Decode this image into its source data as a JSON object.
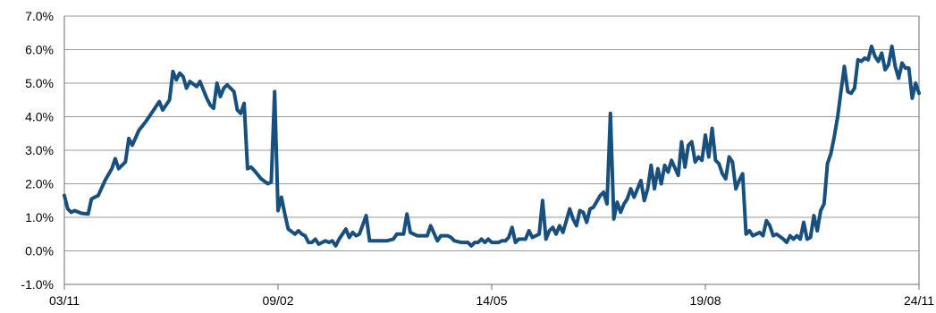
{
  "chart_data": {
    "type": "line",
    "title": "",
    "xlabel": "",
    "ylabel": "",
    "ylim": [
      -1.0,
      7.0
    ],
    "yticks": [
      -1.0,
      0.0,
      1.0,
      2.0,
      3.0,
      4.0,
      5.0,
      6.0,
      7.0
    ],
    "y_tick_labels": [
      "-1.0%",
      "0.0%",
      "1.0%",
      "2.0%",
      "3.0%",
      "4.0%",
      "5.0%",
      "6.0%",
      "7.0%"
    ],
    "xlim": [
      "2003-11",
      "2024-11"
    ],
    "x_ticks": [
      {
        "date": "2003-11",
        "label": "03/11"
      },
      {
        "date": "2009-02",
        "label": "09/02"
      },
      {
        "date": "2014-05",
        "label": "14/05"
      },
      {
        "date": "2019-08",
        "label": "19/08"
      },
      {
        "date": "2024-11",
        "label": "24/11"
      }
    ],
    "grid": true,
    "legend": "none",
    "series": [
      {
        "color": "#17507f",
        "points": [
          [
            "2003-11",
            1.65
          ],
          [
            "2003-12",
            1.25
          ],
          [
            "2004-01",
            1.15
          ],
          [
            "2004-02",
            1.2
          ],
          [
            "2004-04",
            1.12
          ],
          [
            "2004-06",
            1.1
          ],
          [
            "2004-07",
            1.55
          ],
          [
            "2004-09",
            1.65
          ],
          [
            "2004-11",
            2.1
          ],
          [
            "2005-01",
            2.45
          ],
          [
            "2005-02",
            2.75
          ],
          [
            "2005-03",
            2.45
          ],
          [
            "2005-05",
            2.65
          ],
          [
            "2005-06",
            3.35
          ],
          [
            "2005-07",
            3.15
          ],
          [
            "2005-09",
            3.6
          ],
          [
            "2005-11",
            3.85
          ],
          [
            "2006-01",
            4.15
          ],
          [
            "2006-03",
            4.45
          ],
          [
            "2006-04",
            4.2
          ],
          [
            "2006-06",
            4.5
          ],
          [
            "2006-07",
            5.35
          ],
          [
            "2006-08",
            5.1
          ],
          [
            "2006-09",
            5.3
          ],
          [
            "2006-10",
            5.2
          ],
          [
            "2006-11",
            4.85
          ],
          [
            "2006-12",
            5.05
          ],
          [
            "2007-02",
            4.9
          ],
          [
            "2007-03",
            5.05
          ],
          [
            "2007-05",
            4.55
          ],
          [
            "2007-06",
            4.35
          ],
          [
            "2007-07",
            4.25
          ],
          [
            "2007-08",
            5.0
          ],
          [
            "2007-09",
            4.6
          ],
          [
            "2007-10",
            4.85
          ],
          [
            "2007-11",
            4.95
          ],
          [
            "2008-01",
            4.75
          ],
          [
            "2008-02",
            4.2
          ],
          [
            "2008-03",
            4.1
          ],
          [
            "2008-04",
            4.4
          ],
          [
            "2008-05",
            2.45
          ],
          [
            "2008-06",
            2.5
          ],
          [
            "2008-07",
            2.4
          ],
          [
            "2008-09",
            2.15
          ],
          [
            "2008-11",
            2.0
          ],
          [
            "2008-12",
            2.05
          ],
          [
            "2009-01",
            4.75
          ],
          [
            "2009-02",
            1.2
          ],
          [
            "2009-03",
            1.6
          ],
          [
            "2009-04",
            1.1
          ],
          [
            "2009-05",
            0.65
          ],
          [
            "2009-07",
            0.5
          ],
          [
            "2009-08",
            0.6
          ],
          [
            "2009-09",
            0.5
          ],
          [
            "2009-10",
            0.45
          ],
          [
            "2009-11",
            0.25
          ],
          [
            "2009-12",
            0.25
          ],
          [
            "2010-01",
            0.35
          ],
          [
            "2010-02",
            0.2
          ],
          [
            "2010-04",
            0.3
          ],
          [
            "2010-05",
            0.25
          ],
          [
            "2010-06",
            0.3
          ],
          [
            "2010-07",
            0.15
          ],
          [
            "2010-08",
            0.35
          ],
          [
            "2010-10",
            0.65
          ],
          [
            "2010-11",
            0.4
          ],
          [
            "2010-12",
            0.55
          ],
          [
            "2011-01",
            0.45
          ],
          [
            "2011-02",
            0.5
          ],
          [
            "2011-04",
            1.05
          ],
          [
            "2011-05",
            0.3
          ],
          [
            "2011-07",
            0.3
          ],
          [
            "2011-10",
            0.3
          ],
          [
            "2011-12",
            0.35
          ],
          [
            "2012-01",
            0.5
          ],
          [
            "2012-03",
            0.5
          ],
          [
            "2012-04",
            1.1
          ],
          [
            "2012-05",
            0.55
          ],
          [
            "2012-07",
            0.45
          ],
          [
            "2012-09",
            0.45
          ],
          [
            "2012-10",
            0.45
          ],
          [
            "2012-11",
            0.75
          ],
          [
            "2013-01",
            0.3
          ],
          [
            "2013-02",
            0.45
          ],
          [
            "2013-04",
            0.45
          ],
          [
            "2013-05",
            0.4
          ],
          [
            "2013-06",
            0.3
          ],
          [
            "2013-08",
            0.25
          ],
          [
            "2013-10",
            0.25
          ],
          [
            "2013-11",
            0.15
          ],
          [
            "2013-12",
            0.25
          ],
          [
            "2014-01",
            0.25
          ],
          [
            "2014-02",
            0.35
          ],
          [
            "2014-03",
            0.25
          ],
          [
            "2014-04",
            0.35
          ],
          [
            "2014-05",
            0.25
          ],
          [
            "2014-06",
            0.25
          ],
          [
            "2014-07",
            0.25
          ],
          [
            "2014-08",
            0.3
          ],
          [
            "2014-09",
            0.3
          ],
          [
            "2014-10",
            0.4
          ],
          [
            "2014-11",
            0.7
          ],
          [
            "2014-12",
            0.25
          ],
          [
            "2015-01",
            0.35
          ],
          [
            "2015-03",
            0.35
          ],
          [
            "2015-04",
            0.6
          ],
          [
            "2015-05",
            0.4
          ],
          [
            "2015-07",
            0.5
          ],
          [
            "2015-08",
            1.5
          ],
          [
            "2015-09",
            0.35
          ],
          [
            "2015-10",
            0.6
          ],
          [
            "2015-11",
            0.7
          ],
          [
            "2015-12",
            0.5
          ],
          [
            "2016-01",
            0.75
          ],
          [
            "2016-02",
            0.55
          ],
          [
            "2016-04",
            1.25
          ],
          [
            "2016-05",
            0.95
          ],
          [
            "2016-06",
            0.75
          ],
          [
            "2016-07",
            1.2
          ],
          [
            "2016-08",
            1.15
          ],
          [
            "2016-09",
            0.85
          ],
          [
            "2016-10",
            1.25
          ],
          [
            "2016-11",
            1.3
          ],
          [
            "2017-01",
            1.65
          ],
          [
            "2017-02",
            1.75
          ],
          [
            "2017-03",
            1.4
          ],
          [
            "2017-04",
            4.1
          ],
          [
            "2017-05",
            0.95
          ],
          [
            "2017-06",
            1.45
          ],
          [
            "2017-07",
            1.15
          ],
          [
            "2017-08",
            1.4
          ],
          [
            "2017-09",
            1.55
          ],
          [
            "2017-10",
            1.85
          ],
          [
            "2017-11",
            1.6
          ],
          [
            "2018-01",
            2.1
          ],
          [
            "2018-02",
            1.5
          ],
          [
            "2018-03",
            1.85
          ],
          [
            "2018-04",
            2.55
          ],
          [
            "2018-05",
            1.85
          ],
          [
            "2018-06",
            2.45
          ],
          [
            "2018-07",
            2.0
          ],
          [
            "2018-08",
            2.55
          ],
          [
            "2018-09",
            2.35
          ],
          [
            "2018-10",
            2.7
          ],
          [
            "2018-12",
            2.25
          ],
          [
            "2019-01",
            3.25
          ],
          [
            "2019-02",
            2.5
          ],
          [
            "2019-03",
            3.15
          ],
          [
            "2019-04",
            3.25
          ],
          [
            "2019-05",
            2.65
          ],
          [
            "2019-06",
            2.8
          ],
          [
            "2019-07",
            2.7
          ],
          [
            "2019-08",
            3.45
          ],
          [
            "2019-09",
            2.8
          ],
          [
            "2019-10",
            3.65
          ],
          [
            "2019-11",
            2.7
          ],
          [
            "2019-12",
            2.6
          ],
          [
            "2020-01",
            2.3
          ],
          [
            "2020-02",
            2.15
          ],
          [
            "2020-03",
            2.8
          ],
          [
            "2020-04",
            2.65
          ],
          [
            "2020-05",
            1.85
          ],
          [
            "2020-06",
            2.1
          ],
          [
            "2020-07",
            2.3
          ],
          [
            "2020-08",
            0.5
          ],
          [
            "2020-09",
            0.6
          ],
          [
            "2020-10",
            0.45
          ],
          [
            "2020-11",
            0.5
          ],
          [
            "2020-12",
            0.55
          ],
          [
            "2021-01",
            0.45
          ],
          [
            "2021-02",
            0.9
          ],
          [
            "2021-03",
            0.75
          ],
          [
            "2021-04",
            0.45
          ],
          [
            "2021-05",
            0.5
          ],
          [
            "2021-07",
            0.35
          ],
          [
            "2021-08",
            0.25
          ],
          [
            "2021-09",
            0.45
          ],
          [
            "2021-10",
            0.35
          ],
          [
            "2021-11",
            0.45
          ],
          [
            "2021-12",
            0.35
          ],
          [
            "2022-01",
            0.85
          ],
          [
            "2022-02",
            0.35
          ],
          [
            "2022-03",
            0.4
          ],
          [
            "2022-04",
            1.05
          ],
          [
            "2022-05",
            0.6
          ],
          [
            "2022-06",
            1.2
          ],
          [
            "2022-07",
            1.4
          ],
          [
            "2022-08",
            2.6
          ],
          [
            "2022-09",
            2.9
          ],
          [
            "2022-10",
            3.4
          ],
          [
            "2022-11",
            4.0
          ],
          [
            "2022-12",
            4.75
          ],
          [
            "2023-01",
            5.5
          ],
          [
            "2023-02",
            4.75
          ],
          [
            "2023-03",
            4.7
          ],
          [
            "2023-04",
            4.85
          ],
          [
            "2023-05",
            5.7
          ],
          [
            "2023-06",
            5.65
          ],
          [
            "2023-07",
            5.75
          ],
          [
            "2023-08",
            5.7
          ],
          [
            "2023-09",
            6.1
          ],
          [
            "2023-10",
            5.8
          ],
          [
            "2023-11",
            5.65
          ],
          [
            "2023-12",
            5.9
          ],
          [
            "2024-01",
            5.4
          ],
          [
            "2024-02",
            5.55
          ],
          [
            "2024-03",
            6.1
          ],
          [
            "2024-04",
            5.5
          ],
          [
            "2024-05",
            5.15
          ],
          [
            "2024-06",
            5.6
          ],
          [
            "2024-07",
            5.45
          ],
          [
            "2024-08",
            5.45
          ],
          [
            "2024-09",
            4.55
          ],
          [
            "2024-10",
            5.0
          ],
          [
            "2024-11",
            4.7
          ]
        ]
      }
    ]
  }
}
